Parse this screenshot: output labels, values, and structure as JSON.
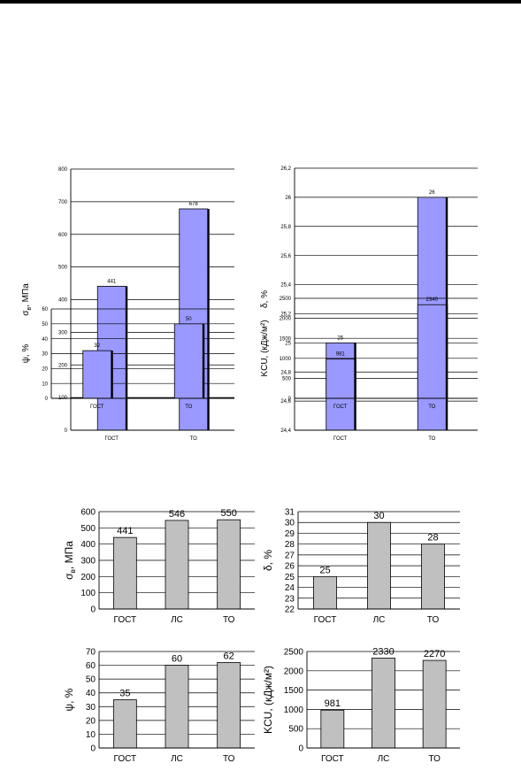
{
  "page": {
    "top_rule": true
  },
  "chart_data": [
    {
      "type": "bar",
      "categories": [
        "ГОСТ",
        "ТО"
      ],
      "values": [
        441,
        678
      ],
      "ylabel": "σв, МПа",
      "ylabel_base": "σ",
      "ylabel_sub": "в",
      "ylabel_rest": ", МПа",
      "ylim": [
        0,
        800
      ],
      "yticks": [
        "0",
        "100",
        "200",
        "300",
        "400",
        "500",
        "600",
        "700",
        "800"
      ],
      "data_labels": [
        "441",
        "678"
      ],
      "grid": true,
      "bar_color": "#9999ff",
      "legend": "none"
    },
    {
      "type": "bar",
      "categories": [
        "ГОСТ",
        "ТО"
      ],
      "values": [
        25,
        26
      ],
      "ylabel": "δ, %",
      "ylim": [
        24.4,
        26.2
      ],
      "yticks": [
        "24,4",
        "24,6",
        "24,8",
        "25",
        "25,2",
        "25,4",
        "25,6",
        "25,8",
        "26",
        "26,2"
      ],
      "data_labels": [
        "25",
        "26"
      ],
      "grid": true,
      "bar_color": "#9999ff",
      "legend": "none"
    },
    {
      "type": "bar",
      "categories": [
        "ГОСТ",
        "ТО"
      ],
      "values": [
        32,
        50
      ],
      "ylabel": "ψ, %",
      "ylim": [
        0,
        60
      ],
      "yticks": [
        "0",
        "10",
        "20",
        "30",
        "40",
        "50",
        "60"
      ],
      "data_labels": [
        "32",
        "50"
      ],
      "grid": true,
      "bar_color": "#9999ff",
      "legend": "none"
    },
    {
      "type": "bar",
      "categories": [
        "ГОСТ",
        "ТО"
      ],
      "values": [
        981,
        2340
      ],
      "ylabel": "KCU, (кДж/м²)",
      "ylim": [
        0,
        2500
      ],
      "yticks": [
        "0",
        "500",
        "1000",
        "1500",
        "2000",
        "2500"
      ],
      "data_labels": [
        "981",
        "2340"
      ],
      "grid": true,
      "bar_color": "#9999ff",
      "legend": "none"
    },
    {
      "type": "bar",
      "categories": [
        "ГОСТ",
        "ЛС",
        "ТО"
      ],
      "values": [
        441,
        546,
        550
      ],
      "ylabel": "σв, МПа",
      "ylabel_base": "σ",
      "ylabel_sub": "в",
      "ylabel_rest": ", МПа",
      "ylim": [
        0,
        600
      ],
      "yticks": [
        "0",
        "100",
        "200",
        "300",
        "400",
        "500",
        "600"
      ],
      "data_labels": [
        "441",
        "546",
        "550"
      ],
      "grid": true,
      "bar_color": "#c0c0c0",
      "legend": "none"
    },
    {
      "type": "bar",
      "categories": [
        "ГОСТ",
        "ЛС",
        "ТО"
      ],
      "values": [
        25,
        30,
        28
      ],
      "ylabel": "δ, %",
      "ylim": [
        22,
        31
      ],
      "yticks": [
        "22",
        "23",
        "24",
        "25",
        "26",
        "27",
        "28",
        "29",
        "30",
        "31"
      ],
      "data_labels": [
        "25",
        "30",
        "28"
      ],
      "grid": true,
      "bar_color": "#c0c0c0",
      "legend": "none"
    },
    {
      "type": "bar",
      "categories": [
        "ГОСТ",
        "ЛС",
        "ТО"
      ],
      "values": [
        35,
        60,
        62
      ],
      "ylabel": "ψ, %",
      "ylim": [
        0,
        70
      ],
      "yticks": [
        "0",
        "10",
        "20",
        "30",
        "40",
        "50",
        "60",
        "70"
      ],
      "data_labels": [
        "35",
        "60",
        "62"
      ],
      "grid": true,
      "bar_color": "#c0c0c0",
      "legend": "none"
    },
    {
      "type": "bar",
      "categories": [
        "ГОСТ",
        "ЛС",
        "ТО"
      ],
      "values": [
        981,
        2330,
        2270
      ],
      "ylabel": "KCU, (кДж/м²)",
      "ylim": [
        0,
        2500
      ],
      "yticks": [
        "0",
        "500",
        "1000",
        "1500",
        "2000",
        "2500"
      ],
      "data_labels": [
        "981",
        "2330",
        "2270"
      ],
      "grid": true,
      "bar_color": "#c0c0c0",
      "legend": "none"
    }
  ]
}
